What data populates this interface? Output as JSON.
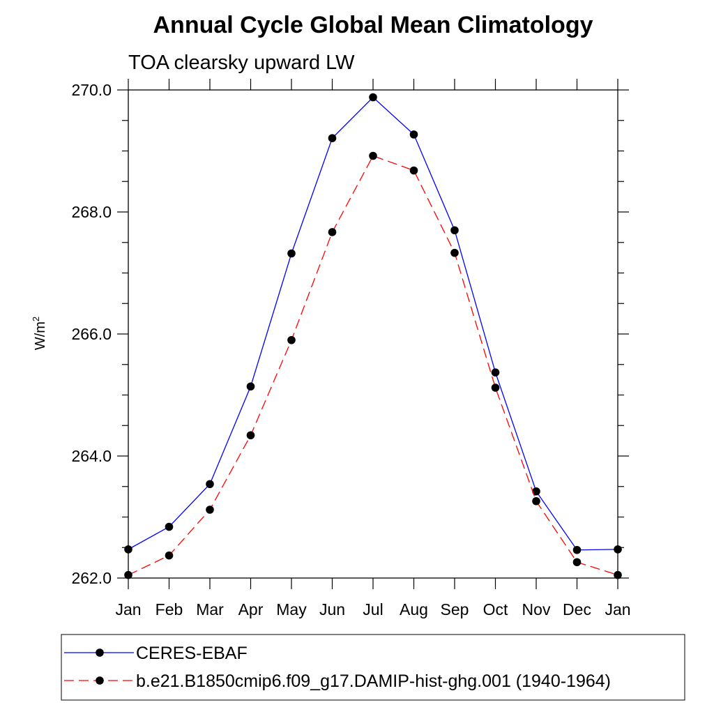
{
  "chart_data": {
    "type": "line",
    "title": "Annual Cycle Global Mean Climatology",
    "subtitle": "TOA clearsky upward LW",
    "ylabel_base": "W/m",
    "ylabel_sup": "2",
    "xlabel": "",
    "categories": [
      "Jan",
      "Feb",
      "Mar",
      "Apr",
      "May",
      "Jun",
      "Jul",
      "Aug",
      "Sep",
      "Oct",
      "Nov",
      "Dec",
      "Jan"
    ],
    "ylim": [
      262.0,
      270.0
    ],
    "yticks": [
      "262.0",
      "264.0",
      "266.0",
      "268.0",
      "270.0"
    ],
    "series": [
      {
        "name": "CERES-EBAF",
        "color": "#0000ff",
        "dash": "solid",
        "values": [
          262.47,
          262.84,
          263.54,
          265.14,
          267.32,
          269.21,
          269.88,
          269.27,
          267.7,
          265.37,
          263.42,
          262.46,
          262.47
        ]
      },
      {
        "name": "b.e21.B1850cmip6.f09_g17.DAMIP-hist-ghg.001 (1940-1964)",
        "color": "#ff0000",
        "dash": "dashed",
        "values": [
          262.05,
          262.37,
          263.12,
          264.34,
          265.9,
          267.67,
          268.92,
          268.68,
          267.33,
          265.12,
          263.26,
          262.26,
          262.05
        ]
      }
    ],
    "grid": false,
    "legend_position": "bottom"
  }
}
